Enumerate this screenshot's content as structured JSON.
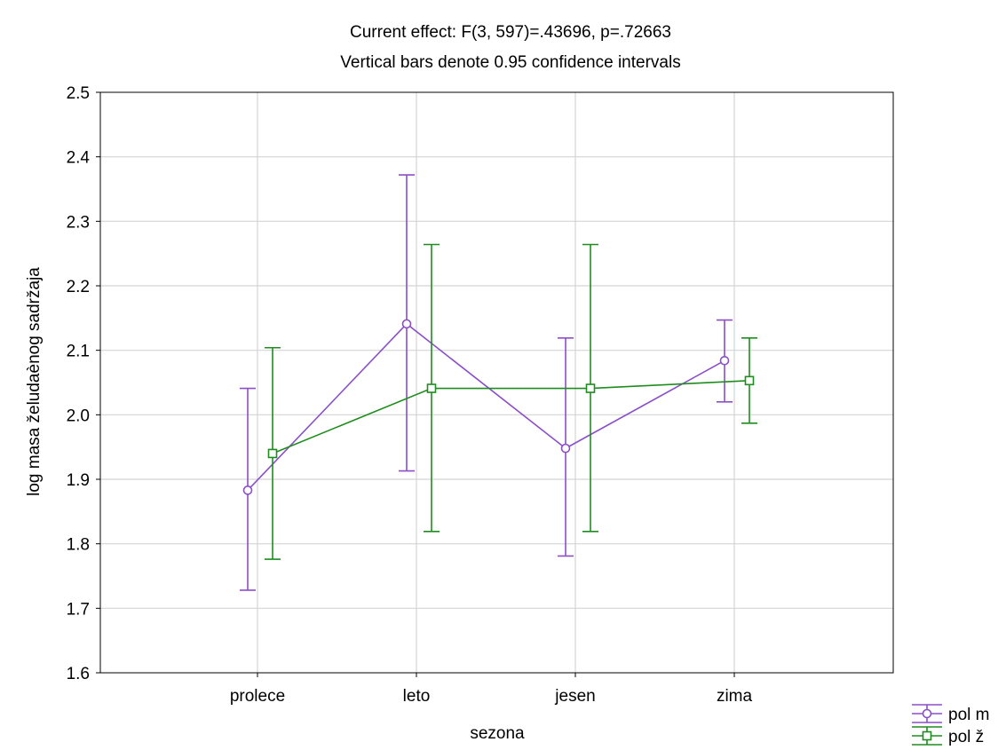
{
  "chart_data": {
    "type": "line",
    "title": "Current effect: F(3, 597)=.43696, p=.72663",
    "subtitle": "Vertical bars denote 0.95 confidence intervals",
    "xlabel": "sezona",
    "ylabel": "log masa želudaènog sadržaja",
    "categories": [
      "prolece",
      "leto",
      "jesen",
      "zima"
    ],
    "ylim": [
      1.6,
      2.5
    ],
    "yticks": [
      "1.6",
      "1.7",
      "1.8",
      "1.9",
      "2.0",
      "2.1",
      "2.2",
      "2.3",
      "2.4",
      "2.5"
    ],
    "grid": true,
    "legend_position": "bottom-right",
    "error_bars": "0.95 confidence intervals",
    "series": [
      {
        "name": "pol m",
        "marker": "circle",
        "color": "#8B4FC8",
        "values": [
          1.883,
          2.141,
          1.948,
          2.084
        ],
        "lower": [
          1.728,
          1.913,
          1.781,
          2.02
        ],
        "upper": [
          2.041,
          2.372,
          2.119,
          2.147
        ]
      },
      {
        "name": "pol ž",
        "marker": "square",
        "color": "#1E8C1E",
        "values": [
          1.94,
          2.041,
          2.041,
          2.053
        ],
        "lower": [
          1.776,
          1.819,
          1.819,
          1.987
        ],
        "upper": [
          2.104,
          2.264,
          2.264,
          2.119
        ]
      }
    ]
  }
}
